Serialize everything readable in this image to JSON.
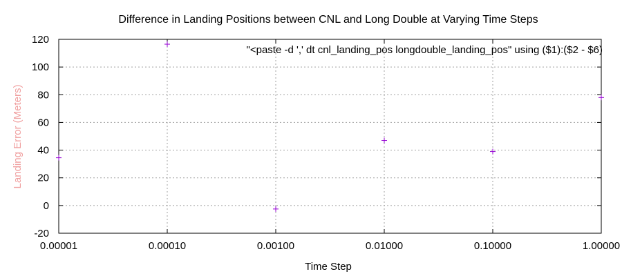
{
  "chart_data": {
    "type": "scatter",
    "title": "Difference in Landing Positions between CNL and Long Double at Varying Time Steps",
    "xlabel": "Time Step",
    "ylabel": "Landing Error (Meters)",
    "ylabel_color": "#f0a0a0",
    "x_scale": "log",
    "xlim": [
      1e-05,
      1.0
    ],
    "ylim": [
      -20,
      120
    ],
    "x_ticks": [
      "0.00001",
      "0.00010",
      "0.00100",
      "0.01000",
      "0.10000",
      "1.00000"
    ],
    "y_ticks": [
      "-20",
      "0",
      "20",
      "40",
      "60",
      "80",
      "100",
      "120"
    ],
    "grid": true,
    "legend_position": "top-right",
    "series": [
      {
        "name": "\"<paste -d ',' dt cnl_landing_pos longdouble_landing_pos\" using ($1):($2 - $6)",
        "color": "#9400d3",
        "marker": "plus",
        "x": [
          1e-05,
          0.0001,
          0.001,
          0.01,
          0.1,
          1.0
        ],
        "y": [
          34.5,
          116.5,
          -2.5,
          47,
          39,
          78
        ]
      }
    ]
  }
}
